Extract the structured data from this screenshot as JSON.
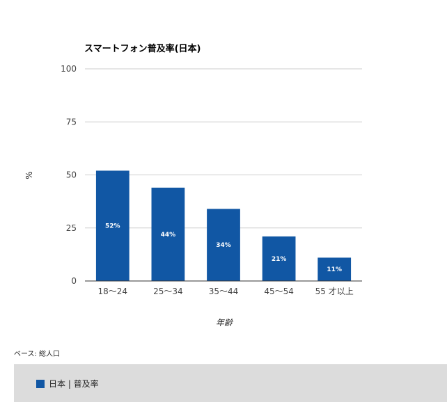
{
  "chart_data": {
    "type": "bar",
    "title": "スマートフォン普及率(日本)",
    "categories": [
      "18～24",
      "25～34",
      "35～44",
      "45～54",
      "55 才以上"
    ],
    "series": [
      {
        "name": "日本 | 普及率",
        "values": [
          52,
          44,
          34,
          21,
          11
        ],
        "value_labels": [
          "52%",
          "44%",
          "34%",
          "21%",
          "11%"
        ]
      }
    ],
    "xlabel": "年齢",
    "ylabel": "%",
    "ylim": [
      0,
      100
    ],
    "yticks": [
      0,
      25,
      50,
      75,
      100
    ],
    "ytick_labels": [
      "0",
      "25",
      "50",
      "75",
      "100"
    ],
    "grid": true,
    "legend_position": "bottom"
  },
  "colors": {
    "bar": "#1157a4",
    "grid": "#cccccc",
    "axis": "#333333",
    "legend_bg": "#dcdcdc"
  },
  "footer": {
    "base_note": "ベース: 総人口"
  }
}
